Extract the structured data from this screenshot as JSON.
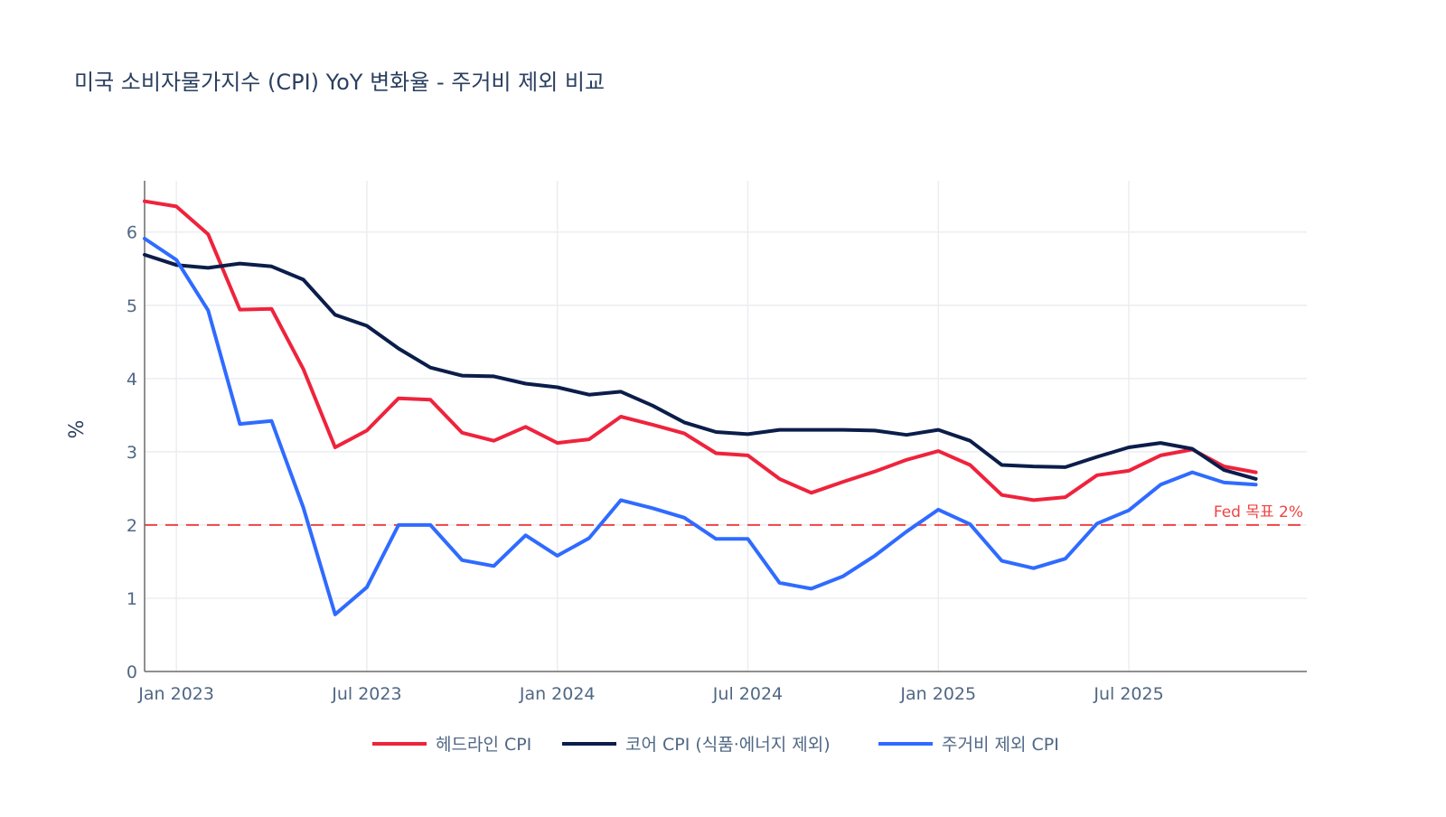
{
  "chart_data": {
    "type": "line",
    "title": "미국 소비자물가지수 (CPI) YoY 변화율 - 주거비 제외 비교",
    "xlabel": "",
    "ylabel": "%",
    "ylim": [
      0,
      6.7
    ],
    "yticks": [
      0,
      1,
      2,
      3,
      4,
      5,
      6
    ],
    "xlim": [
      "2022-12",
      "2025-12"
    ],
    "xticks": [
      {
        "label": "Jan 2023",
        "month_index": 1
      },
      {
        "label": "Jul 2023",
        "month_index": 7
      },
      {
        "label": "Jan 2024",
        "month_index": 13
      },
      {
        "label": "Jul 2024",
        "month_index": 19
      },
      {
        "label": "Jan 2025",
        "month_index": 25
      },
      {
        "label": "Jul 2025",
        "month_index": 31
      }
    ],
    "x": [
      "2022-12",
      "2023-01",
      "2023-02",
      "2023-03",
      "2023-04",
      "2023-05",
      "2023-06",
      "2023-07",
      "2023-08",
      "2023-09",
      "2023-10",
      "2023-11",
      "2023-12",
      "2024-01",
      "2024-02",
      "2024-03",
      "2024-04",
      "2024-05",
      "2024-06",
      "2024-07",
      "2024-08",
      "2024-09",
      "2024-10",
      "2024-11",
      "2024-12",
      "2025-01",
      "2025-02",
      "2025-03",
      "2025-04",
      "2025-05",
      "2025-06",
      "2025-07",
      "2025-08",
      "2025-09",
      "2025-10",
      "2025-11"
    ],
    "x_index": [
      0,
      1,
      2,
      3,
      4,
      5,
      6,
      7,
      8,
      9,
      10,
      11,
      12,
      13,
      14,
      15,
      16,
      17,
      18,
      19,
      20,
      21,
      22,
      23,
      24,
      25,
      26,
      27,
      28,
      29,
      30,
      31,
      32,
      33,
      34,
      35
    ],
    "grid": true,
    "legend_position": "bottom-center",
    "series": [
      {
        "name": "헤드라인 CPI",
        "color": "#ef233c",
        "values": [
          6.42,
          6.35,
          5.97,
          4.94,
          4.95,
          4.13,
          3.06,
          3.29,
          3.73,
          3.71,
          3.26,
          3.15,
          3.34,
          3.12,
          3.17,
          3.48,
          3.37,
          3.25,
          2.98,
          2.95,
          2.63,
          2.44,
          2.59,
          2.73,
          2.89,
          3.01,
          2.82,
          2.41,
          2.34,
          2.38,
          2.68,
          2.74,
          2.95,
          3.03,
          2.8,
          2.72
        ]
      },
      {
        "name": "코어 CPI (식품·에너지 제외)",
        "color": "#0b1d4a",
        "values": [
          5.69,
          5.55,
          5.51,
          5.57,
          5.53,
          5.35,
          4.87,
          4.72,
          4.41,
          4.15,
          4.04,
          4.03,
          3.93,
          3.88,
          3.78,
          3.82,
          3.63,
          3.4,
          3.27,
          3.24,
          3.3,
          3.3,
          3.3,
          3.29,
          3.23,
          3.3,
          3.15,
          2.82,
          2.8,
          2.79,
          2.93,
          3.06,
          3.12,
          3.04,
          2.75,
          2.63
        ]
      },
      {
        "name": "주거비 제외 CPI",
        "color": "#2f6bff",
        "values": [
          5.91,
          5.62,
          4.93,
          3.38,
          3.42,
          2.24,
          0.78,
          1.15,
          2.0,
          2.0,
          1.52,
          1.44,
          1.86,
          1.58,
          1.82,
          2.34,
          2.23,
          2.1,
          1.81,
          1.81,
          1.21,
          1.13,
          1.3,
          1.58,
          1.91,
          2.21,
          2.01,
          1.51,
          1.41,
          1.54,
          2.02,
          2.2,
          2.55,
          2.72,
          2.58,
          2.55
        ]
      }
    ],
    "reference_line": {
      "y": 2,
      "label": "Fed 목표 2%",
      "color": "#ef4444",
      "style": "dashed"
    }
  }
}
